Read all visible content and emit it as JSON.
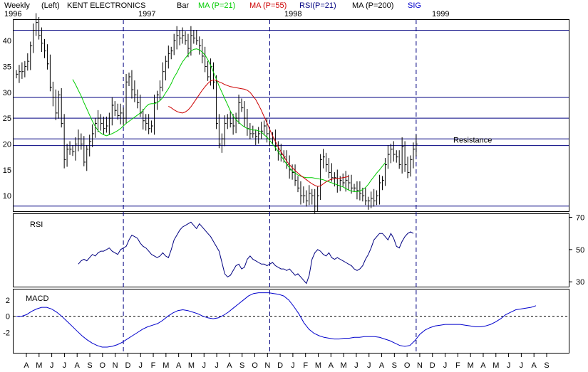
{
  "header": {
    "period": "Weekly",
    "scale": "(Left)",
    "ticker_name": "KENT ELECTRONICS",
    "chart_kind": "Bar",
    "legend": [
      {
        "label": "MA (P=21)",
        "color": "#00cc00"
      },
      {
        "label": "MA (P=55)",
        "color": "#cc0000"
      },
      {
        "label": "RSI(P=21)",
        "color": "#000080"
      },
      {
        "label": "MA (P=200)",
        "color": "#000000"
      },
      {
        "label": "SIG",
        "color": "#0000cc"
      }
    ]
  },
  "colors": {
    "grid": "#000080",
    "bars": "#000000",
    "ma21": "#00cc00",
    "ma55": "#cc0000",
    "rsi": "#000080",
    "macd": "#0000cc",
    "zero_line": "#000000"
  },
  "chart_data": [
    {
      "type": "bar",
      "subtype": "ohlc-weekly",
      "panel": "price",
      "year_labels": [
        {
          "label": "1996",
          "x_index": 0
        },
        {
          "label": "1997",
          "x_index": 38
        },
        {
          "label": "1998",
          "x_index": 90
        },
        {
          "label": "1999",
          "x_index": 142
        }
      ],
      "year_dividers": [
        38,
        90,
        142
      ],
      "month_ticks": [
        "A",
        "M",
        "J",
        "J",
        "A",
        "S",
        "O",
        "N",
        "D",
        "J",
        "F",
        "M",
        "A",
        "M",
        "J",
        "J",
        "A",
        "S",
        "O",
        "N",
        "D",
        "J",
        "F",
        "M",
        "A",
        "M",
        "J",
        "J",
        "A",
        "S",
        "O",
        "N",
        "D",
        "J",
        "F",
        "M",
        "A",
        "M",
        "J",
        "J",
        "A",
        "S"
      ],
      "ylim": [
        7,
        44
      ],
      "yticks": [
        10,
        15,
        20,
        25,
        30,
        35,
        40
      ],
      "hlines": [
        42,
        29,
        25,
        21,
        19.7,
        8
      ],
      "annotation": {
        "text": "Resistance",
        "level": 19.7
      },
      "closes": [
        33.5,
        34,
        34,
        35,
        36,
        39,
        42,
        43.5,
        41,
        39.5,
        38,
        35.5,
        31,
        29,
        26,
        29.5,
        24,
        17,
        19,
        19,
        18.5,
        20,
        21,
        20,
        16.5,
        19,
        20.5,
        22,
        24,
        25,
        24,
        23,
        23.5,
        25,
        27.5,
        26.5,
        25.5,
        26,
        25,
        32,
        33,
        30.5,
        29.5,
        28,
        26,
        24.5,
        24,
        23,
        23.5,
        28,
        29.5,
        31,
        34,
        36,
        37.5,
        38,
        40,
        41,
        40.5,
        41,
        40,
        38.5,
        41,
        40.5,
        40,
        39,
        37,
        35,
        33,
        35,
        32,
        24,
        20,
        21,
        24,
        25,
        24,
        23.5,
        25,
        28,
        27,
        25,
        23,
        22,
        22,
        21.5,
        22,
        22.5,
        23.5,
        22,
        21,
        21,
        19.5,
        18.5,
        18,
        17.5,
        16,
        15,
        14.5,
        13,
        11.5,
        10,
        10,
        9,
        10.5,
        10,
        8,
        10,
        17,
        17.5,
        16,
        14.5,
        13.5,
        13.5,
        12,
        13,
        12.5,
        13,
        12.5,
        11.5,
        11.5,
        11,
        10.5,
        10,
        9,
        9,
        9.5,
        9,
        10,
        12.5,
        13,
        16,
        18,
        19,
        18,
        17.5,
        16,
        19.5,
        16,
        14.5,
        17,
        19,
        20
      ],
      "ma21": [
        null,
        null,
        null,
        null,
        null,
        null,
        null,
        null,
        null,
        null,
        null,
        null,
        null,
        null,
        null,
        null,
        null,
        null,
        null,
        null,
        32.5,
        31.5,
        30.4,
        29.3,
        28,
        26.8,
        25.6,
        24.4,
        23.4,
        22.6,
        22.1,
        21.8,
        21.6,
        21.8,
        22,
        22.3,
        22.6,
        23,
        23.5,
        24,
        24.4,
        24.8,
        25.2,
        25.6,
        26,
        26.5,
        27.2,
        27.7,
        27.8,
        27.8,
        28,
        28.4,
        29,
        29.9,
        30.7,
        31.7,
        32.9,
        33.8,
        34.9,
        35.9,
        36.6,
        37.3,
        38,
        38.3,
        38.4,
        38.2,
        37.8,
        37.2,
        36.3,
        35.2,
        33.9,
        32.6,
        31.2,
        30,
        28.8,
        27.6,
        26.4,
        25.4,
        24.7,
        24.2,
        23.7,
        23.3,
        23,
        22.8,
        22.7,
        22.7,
        22.6,
        22.3,
        21.8,
        21.3,
        20.7,
        20,
        19.3,
        18.5,
        17.7,
        16.9,
        16.1,
        15.4,
        14.8,
        14.4,
        14,
        13.8,
        13.6,
        13.5,
        13.5,
        13.5,
        13.4,
        13.3,
        13.2,
        13.1,
        12.9,
        12.7,
        12.5,
        12.3,
        12.1,
        11.9,
        11.7,
        11.4,
        11.1,
        10.9,
        10.8,
        10.8,
        10.9,
        11.2,
        11.6,
        12.2,
        13,
        13.7,
        14.4,
        15,
        15.7,
        16.4
      ],
      "ma55": [
        null,
        null,
        null,
        null,
        null,
        null,
        null,
        null,
        null,
        null,
        null,
        null,
        null,
        null,
        null,
        null,
        null,
        null,
        null,
        null,
        null,
        null,
        null,
        null,
        null,
        null,
        null,
        null,
        null,
        null,
        null,
        null,
        null,
        null,
        null,
        null,
        null,
        null,
        null,
        null,
        null,
        null,
        null,
        null,
        null,
        null,
        null,
        null,
        null,
        null,
        null,
        null,
        null,
        null,
        27.3,
        27,
        26.6,
        26.3,
        26.1,
        26,
        26.2,
        26.6,
        27.2,
        28,
        28.8,
        29.6,
        30.4,
        31.1,
        31.7,
        32.2,
        32.4,
        32.3,
        32,
        31.8,
        31.5,
        31.3,
        31.1,
        31,
        30.9,
        30.8,
        30.7,
        30.6,
        30.4,
        30,
        29.3,
        28.6,
        27.6,
        26.5,
        25.3,
        24.1,
        22.8,
        21.6,
        20.5,
        19.4,
        18.5,
        17.6,
        16.7,
        16,
        15.4,
        14.9,
        14.4,
        13.9,
        13.5,
        13.1,
        12.7,
        12.3,
        12,
        11.8,
        11.9,
        12.3,
        12.7,
        13,
        13.2,
        13.3,
        13.4,
        13.4,
        13.5,
        13.6,
        13.7
      ]
    },
    {
      "type": "line",
      "panel": "rsi",
      "title": "RSI",
      "ylim": [
        27,
        72
      ],
      "yticks": [
        30,
        50,
        70
      ],
      "x_start_index": 22,
      "series": [
        {
          "name": "RSI(P=21)",
          "values": [
            41,
            43,
            44,
            43,
            45,
            47,
            46,
            48,
            49,
            49,
            50,
            51,
            49,
            48,
            47,
            50,
            51,
            52,
            56,
            59,
            58,
            57,
            54,
            52,
            51,
            49,
            47,
            46,
            45,
            46,
            48,
            46,
            45,
            50,
            56,
            59,
            62,
            64,
            65,
            66,
            67,
            65,
            63,
            66,
            64,
            62,
            60,
            58,
            55,
            52,
            49,
            42,
            35,
            33,
            34,
            37,
            40,
            41,
            38,
            39,
            44,
            46,
            44,
            43,
            42,
            41,
            41,
            40,
            41,
            42,
            40,
            39,
            38,
            38,
            37,
            38,
            36,
            34,
            35,
            33,
            31,
            29,
            34,
            44,
            48,
            50,
            49,
            47,
            46,
            48,
            45,
            44,
            45,
            44,
            43,
            42,
            41,
            40,
            38,
            37,
            38,
            40,
            44,
            47,
            51,
            56,
            58,
            60,
            60,
            58,
            56,
            60,
            57,
            52,
            51,
            55,
            58,
            60,
            61,
            60
          ]
        }
      ]
    },
    {
      "type": "line",
      "panel": "macd",
      "title": "MACD",
      "ylim": [
        -4.5,
        3.3
      ],
      "yticks": [
        2,
        0,
        -2
      ],
      "zero_line": true,
      "series": [
        {
          "name": "MACD",
          "values": [
            0,
            0,
            0.2,
            0.6,
            0.9,
            1.1,
            1.1,
            0.9,
            0.5,
            0,
            -0.6,
            -1.2,
            -1.8,
            -2.4,
            -2.9,
            -3.3,
            -3.6,
            -3.8,
            -3.8,
            -3.7,
            -3.5,
            -3.2,
            -2.8,
            -2.4,
            -2,
            -1.6,
            -1.3,
            -1.1,
            -0.9,
            -0.5,
            0,
            0.4,
            0.7,
            0.8,
            0.7,
            0.5,
            0.3,
            0,
            -0.2,
            -0.3,
            -0.2,
            0.1,
            0.5,
            1,
            1.5,
            2,
            2.5,
            2.8,
            2.9,
            2.9,
            2.9,
            2.8,
            2.7,
            2.5,
            2,
            1.2,
            0.3,
            -0.8,
            -1.6,
            -2.1,
            -2.4,
            -2.6,
            -2.7,
            -2.8,
            -2.8,
            -2.7,
            -2.7,
            -2.6,
            -2.6,
            -2.5,
            -2.5,
            -2.5,
            -2.6,
            -2.8,
            -3,
            -3.3,
            -3.6,
            -3.7,
            -3.6,
            -3,
            -2.2,
            -1.7,
            -1.4,
            -1.2,
            -1.1,
            -1,
            -1,
            -1,
            -1,
            -1.1,
            -1.2,
            -1.3,
            -1.3,
            -1.2,
            -1,
            -0.7,
            -0.3,
            0.2,
            0.5,
            0.8,
            0.9,
            1,
            1.1,
            1.3
          ]
        }
      ]
    }
  ]
}
